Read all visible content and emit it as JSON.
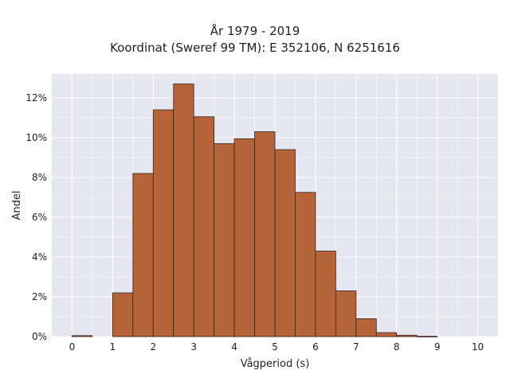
{
  "chart_data": {
    "type": "bar",
    "title_line1": "År 1979 - 2019",
    "title_line2": "Koordinat (Sweref 99 TM): E 352106, N 6251616",
    "xlabel": "Vågperiod (s)",
    "ylabel": "Andel",
    "x_ticks": [
      "0",
      "1",
      "2",
      "3",
      "4",
      "5",
      "6",
      "7",
      "8",
      "9",
      "10"
    ],
    "y_ticks": [
      "0%",
      "2%",
      "4%",
      "6%",
      "8%",
      "10%",
      "12%"
    ],
    "xlim": [
      -0.5,
      10.5
    ],
    "ylim": [
      0,
      13.2
    ],
    "bin_width": 0.5,
    "bins": [
      {
        "x0": 0.0,
        "value": 0.05
      },
      {
        "x0": 1.0,
        "value": 2.2
      },
      {
        "x0": 1.5,
        "value": 8.2
      },
      {
        "x0": 2.0,
        "value": 11.4
      },
      {
        "x0": 2.5,
        "value": 12.7
      },
      {
        "x0": 3.0,
        "value": 11.05
      },
      {
        "x0": 3.5,
        "value": 9.7
      },
      {
        "x0": 4.0,
        "value": 9.95
      },
      {
        "x0": 4.5,
        "value": 10.3
      },
      {
        "x0": 5.0,
        "value": 9.4
      },
      {
        "x0": 5.5,
        "value": 7.25
      },
      {
        "x0": 6.0,
        "value": 4.3
      },
      {
        "x0": 6.5,
        "value": 2.3
      },
      {
        "x0": 7.0,
        "value": 0.9
      },
      {
        "x0": 7.5,
        "value": 0.2
      },
      {
        "x0": 8.0,
        "value": 0.07
      },
      {
        "x0": 8.5,
        "value": 0.02
      }
    ],
    "bar_color": "#b5643a",
    "bar_edge_color": "#3a2418",
    "background_color": "#e5e6ef",
    "grid": true,
    "legend": "none"
  }
}
